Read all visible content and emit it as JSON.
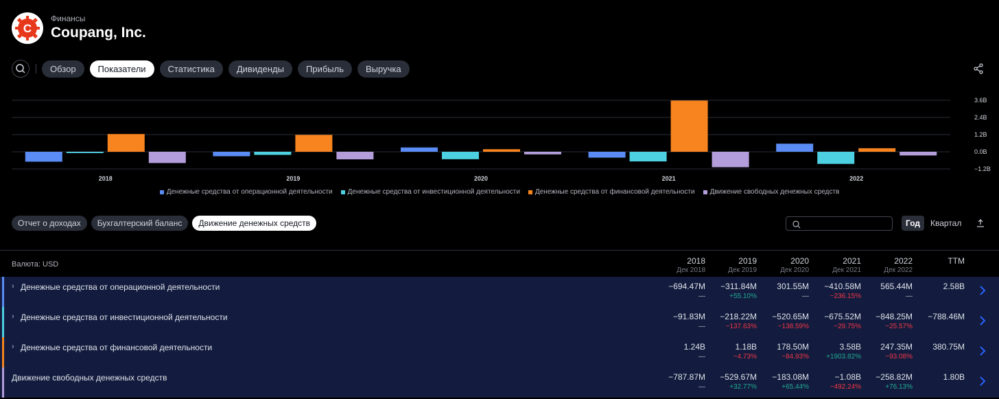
{
  "header": {
    "section": "Финансы",
    "company": "Coupang, Inc.",
    "logo_letter": "C",
    "logo_color": "#e8381b"
  },
  "nav": {
    "search_icon": "search-icon",
    "tabs": [
      {
        "label": "Обзор",
        "active": false
      },
      {
        "label": "Показатели",
        "active": true
      },
      {
        "label": "Статистика",
        "active": false
      },
      {
        "label": "Дивиденды",
        "active": false
      },
      {
        "label": "Прибыль",
        "active": false
      },
      {
        "label": "Выручка",
        "active": false
      }
    ],
    "share_icon": "share-icon"
  },
  "chart_data": {
    "type": "bar",
    "categories": [
      "2018",
      "2019",
      "2020",
      "2021",
      "2022"
    ],
    "series": [
      {
        "name": "Денежные средства от операционной деятельности",
        "color": "#5b8cf5",
        "values": [
          -0.69447,
          -0.31184,
          0.30155,
          -0.41058,
          0.56544
        ]
      },
      {
        "name": "Денежные средства от инвестиционной деятельности",
        "color": "#4dd0e1",
        "values": [
          -0.09183,
          -0.21822,
          -0.52065,
          -0.67552,
          -0.84825
        ]
      },
      {
        "name": "Денежные средства от финансовой деятельности",
        "color": "#f7841e",
        "values": [
          1.24,
          1.18,
          0.1785,
          3.58,
          0.24735
        ]
      },
      {
        "name": "Движение свободных денежных средств",
        "color": "#b39ddb",
        "values": [
          -0.78787,
          -0.52967,
          -0.18308,
          -1.08,
          -0.25882
        ]
      }
    ],
    "y_ticks": [
      3.6,
      2.4,
      1.2,
      0.0,
      -1.2
    ],
    "y_tick_labels": [
      "3.6B",
      "2.4B",
      "1.2B",
      "0.0B",
      "−1.2B"
    ],
    "ylim": [
      -1.2,
      3.6
    ],
    "grid": true,
    "legend_position": "bottom"
  },
  "statements": {
    "tabs": [
      {
        "label": "Отчет о доходах",
        "active": false
      },
      {
        "label": "Бухгалтерский баланс",
        "active": false
      },
      {
        "label": "Движение денежных средств",
        "active": true
      }
    ],
    "period_year": "Год",
    "period_quarter": "Квартал",
    "export_icon": "export-icon"
  },
  "table": {
    "currency": "Валюта: USD",
    "columns": [
      {
        "year": "2018",
        "date": "Дек 2018"
      },
      {
        "year": "2019",
        "date": "Дек 2019"
      },
      {
        "year": "2020",
        "date": "Дек 2020"
      },
      {
        "year": "2021",
        "date": "Дек 2021"
      },
      {
        "year": "2022",
        "date": "Дек 2022"
      },
      {
        "year": "TTM",
        "date": ""
      }
    ],
    "rows": [
      {
        "label": "Денежные средства от операционной деятельности",
        "expandable": true,
        "color": "#5b8cf5",
        "cells": [
          {
            "value": "−694.47M",
            "change": "—",
            "dir": "none"
          },
          {
            "value": "−311.84M",
            "change": "+55.10%",
            "dir": "pos"
          },
          {
            "value": "301.55M",
            "change": "—",
            "dir": "none"
          },
          {
            "value": "−410.58M",
            "change": "−236.15%",
            "dir": "neg"
          },
          {
            "value": "565.44M",
            "change": "—",
            "dir": "none"
          },
          {
            "value": "2.58B",
            "change": "",
            "dir": "none"
          }
        ]
      },
      {
        "label": "Денежные средства от инвестиционной деятельности",
        "expandable": true,
        "color": "#4dd0e1",
        "cells": [
          {
            "value": "−91.83M",
            "change": "—",
            "dir": "none"
          },
          {
            "value": "−218.22M",
            "change": "−137.63%",
            "dir": "neg"
          },
          {
            "value": "−520.65M",
            "change": "−138.59%",
            "dir": "neg"
          },
          {
            "value": "−675.52M",
            "change": "−29.75%",
            "dir": "neg"
          },
          {
            "value": "−848.25M",
            "change": "−25.57%",
            "dir": "neg"
          },
          {
            "value": "−788.46M",
            "change": "",
            "dir": "none"
          }
        ]
      },
      {
        "label": "Денежные средства от финансовой деятельности",
        "expandable": true,
        "color": "#f7841e",
        "cells": [
          {
            "value": "1.24B",
            "change": "—",
            "dir": "none"
          },
          {
            "value": "1.18B",
            "change": "−4.73%",
            "dir": "neg"
          },
          {
            "value": "178.50M",
            "change": "−84.93%",
            "dir": "neg"
          },
          {
            "value": "3.58B",
            "change": "+1903.82%",
            "dir": "pos"
          },
          {
            "value": "247.35M",
            "change": "−93.08%",
            "dir": "neg"
          },
          {
            "value": "380.75M",
            "change": "",
            "dir": "none"
          }
        ]
      },
      {
        "label": "Движение свободных денежных средств",
        "expandable": false,
        "color": "#b39ddb",
        "cells": [
          {
            "value": "−787.87M",
            "change": "—",
            "dir": "none"
          },
          {
            "value": "−529.67M",
            "change": "+32.77%",
            "dir": "pos"
          },
          {
            "value": "−183.08M",
            "change": "+65.44%",
            "dir": "pos"
          },
          {
            "value": "−1.08B",
            "change": "−492.24%",
            "dir": "neg"
          },
          {
            "value": "−258.82M",
            "change": "+76.13%",
            "dir": "pos"
          },
          {
            "value": "1.80B",
            "change": "",
            "dir": "none"
          }
        ]
      }
    ]
  }
}
